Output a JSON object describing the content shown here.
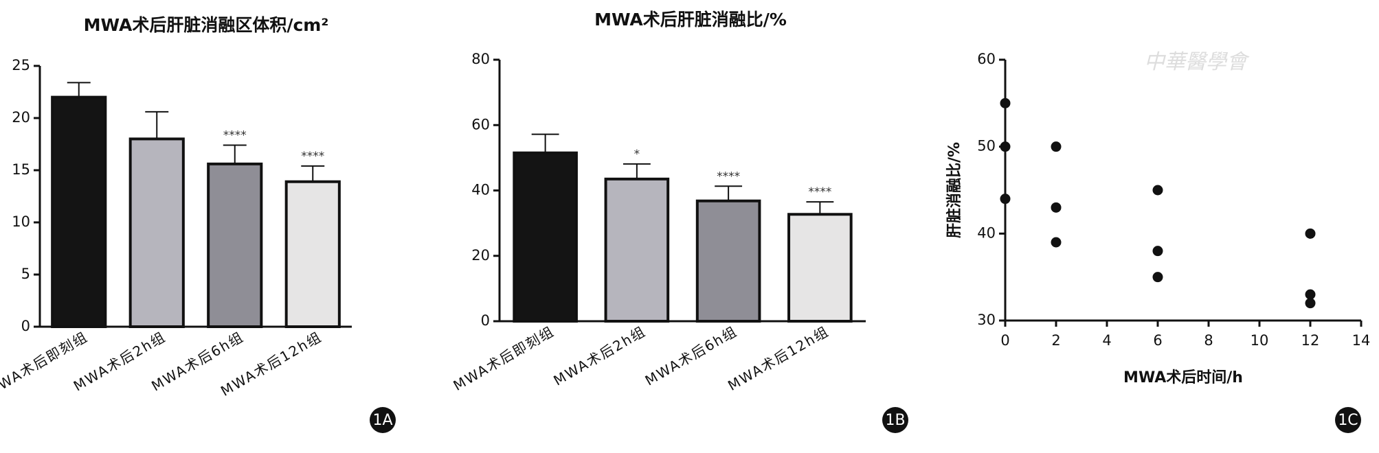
{
  "chart_data": [
    {
      "type": "bar",
      "title": "MWA术后肝脏消融区体积/cm²",
      "panel_label": "1A",
      "categories": [
        "MWA术后即刻组",
        "MWA术后2h组",
        "MWA术后6h组",
        "MWA术后12h组"
      ],
      "values": [
        22,
        18,
        15.6,
        13.9
      ],
      "errors": [
        1.4,
        2.6,
        1.8,
        1.5
      ],
      "annotations": [
        null,
        null,
        "****",
        "****"
      ],
      "colors": [
        "#141414",
        "#b6b5bd",
        "#8f8e96",
        "#e6e5e5"
      ],
      "ylim": [
        0,
        25
      ],
      "yticks": [
        0,
        5,
        10,
        15,
        20,
        25
      ],
      "grid": false
    },
    {
      "type": "bar",
      "title": "MWA术后肝脏消融比/%",
      "panel_label": "1B",
      "categories": [
        "MWA术后即刻组",
        "MWA术后2h组",
        "MWA术后6h组",
        "MWA术后12h组"
      ],
      "values": [
        51.5,
        43.5,
        36.8,
        32.7
      ],
      "errors": [
        5.7,
        4.6,
        4.5,
        3.8
      ],
      "annotations": [
        null,
        "*",
        "****",
        "****"
      ],
      "colors": [
        "#141414",
        "#b6b5bd",
        "#8f8e96",
        "#e6e5e5"
      ],
      "ylim": [
        0,
        80
      ],
      "yticks": [
        0,
        20,
        40,
        60,
        80
      ],
      "grid": false
    },
    {
      "type": "scatter",
      "panel_label": "1C",
      "watermark": "中華醫學會",
      "x_label": "MWA术后时间/h",
      "y_label": "肝脏消融比/%",
      "x": [
        0,
        0,
        0,
        2,
        2,
        2,
        6,
        6,
        6,
        12,
        12,
        12
      ],
      "y": [
        55,
        50,
        44,
        50,
        43,
        39,
        45,
        38,
        35,
        40,
        33,
        32
      ],
      "color": "#111111",
      "xlim": [
        0,
        14
      ],
      "xticks": [
        0,
        2,
        4,
        6,
        8,
        10,
        12,
        14
      ],
      "ylim": [
        30,
        60
      ],
      "yticks": [
        30,
        40,
        50,
        60
      ],
      "grid": false
    }
  ]
}
